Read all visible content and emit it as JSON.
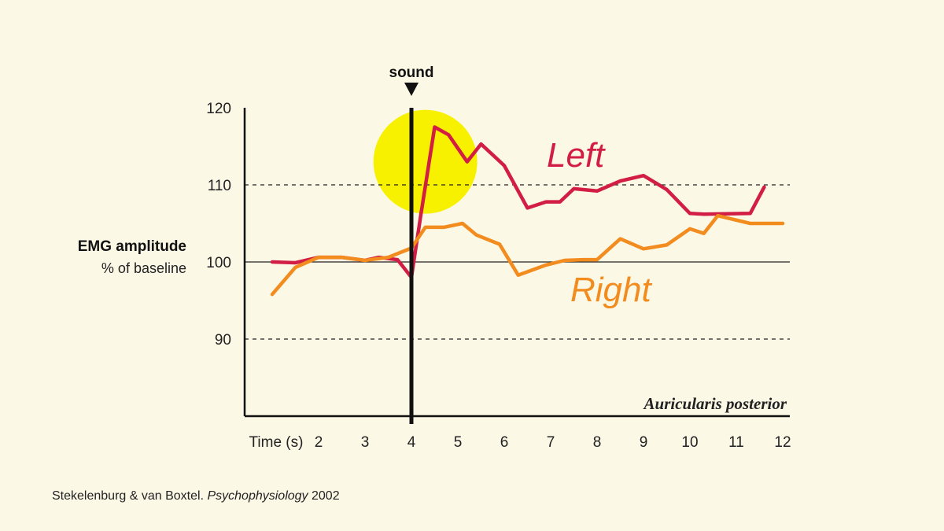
{
  "chart_data": {
    "type": "line",
    "ylabel": "EMG amplitude",
    "ylabel_sub": "% of baseline",
    "xlabel": "Time (s)",
    "x_tick_labels": [
      "Time (s)",
      "2",
      "3",
      "4",
      "5",
      "6",
      "7",
      "8",
      "9",
      "10",
      "11",
      "12"
    ],
    "x_tick_values": [
      1,
      2,
      3,
      4,
      5,
      6,
      7,
      8,
      9,
      10,
      11,
      12
    ],
    "xlim": [
      0.5,
      12.2
    ],
    "y_ticks": [
      90,
      100,
      110,
      120
    ],
    "ylim": [
      80,
      120
    ],
    "dashed_gridlines": [
      90,
      110
    ],
    "solid_gridlines": [
      100
    ],
    "event_marker": {
      "x": 4,
      "label": "sound"
    },
    "highlight_circle": {
      "x": 4.3,
      "y": 113,
      "color": "#F7F100"
    },
    "muscle_label": "Auricularis posterior",
    "series": [
      {
        "name": "Left",
        "color": "#D21D44",
        "x": [
          1.0,
          1.5,
          2.0,
          2.5,
          3.0,
          3.3,
          3.7,
          4.0,
          4.2,
          4.5,
          4.8,
          5.2,
          5.5,
          6.0,
          6.5,
          6.9,
          7.2,
          7.5,
          8.0,
          8.5,
          9.0,
          9.5,
          10.0,
          10.3,
          11.3,
          11.6
        ],
        "values": [
          100.0,
          99.9,
          100.6,
          100.6,
          100.2,
          100.6,
          100.3,
          98.0,
          106.0,
          117.5,
          116.5,
          113.0,
          115.3,
          112.5,
          107.0,
          107.8,
          107.8,
          109.5,
          109.2,
          110.5,
          111.2,
          109.4,
          106.3,
          106.2,
          106.3,
          109.7
        ]
      },
      {
        "name": "Right",
        "color": "#F28C1F",
        "x": [
          1.0,
          1.5,
          2.0,
          2.5,
          3.0,
          3.5,
          4.0,
          4.3,
          4.7,
          5.1,
          5.4,
          5.9,
          6.3,
          6.9,
          7.3,
          7.7,
          8.0,
          8.5,
          9.0,
          9.5,
          10.0,
          10.3,
          10.6,
          11.3,
          12.0
        ],
        "values": [
          95.8,
          99.3,
          100.6,
          100.6,
          100.2,
          100.6,
          101.8,
          104.5,
          104.5,
          105.0,
          103.5,
          102.3,
          98.3,
          99.6,
          100.2,
          100.3,
          100.3,
          103.0,
          101.7,
          102.2,
          104.3,
          103.7,
          106.0,
          105.0,
          105.0
        ]
      }
    ]
  },
  "source": {
    "authors": "Stekelenburg & van Boxtel.",
    "journal": "Psychophysiology",
    "year": "2002"
  }
}
